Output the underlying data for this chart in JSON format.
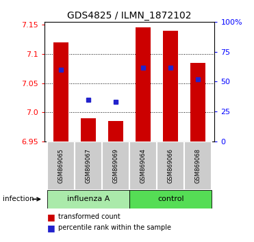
{
  "title": "GDS4825 / ILMN_1872102",
  "samples": [
    "GSM869065",
    "GSM869067",
    "GSM869069",
    "GSM869064",
    "GSM869066",
    "GSM869068"
  ],
  "bar_bottom": 6.95,
  "bar_tops": [
    7.12,
    6.99,
    6.985,
    7.145,
    7.14,
    7.085
  ],
  "percentile_values": [
    7.073,
    7.022,
    7.018,
    7.076,
    7.076,
    7.057
  ],
  "ylim": [
    6.95,
    7.155
  ],
  "yticks_left": [
    6.95,
    7.0,
    7.05,
    7.1,
    7.15
  ],
  "yticks_right_pct": [
    0,
    25,
    50,
    75,
    100
  ],
  "bar_color": "#cc0000",
  "percentile_color": "#2222cc",
  "bar_width": 0.55,
  "infection_label": "infection",
  "legend_bar_label": "transformed count",
  "legend_pct_label": "percentile rank within the sample",
  "title_fontsize": 10,
  "tick_fontsize": 8,
  "label_fontsize": 7,
  "group_fontsize": 8,
  "influenza_color": "#aaeaaa",
  "control_color": "#55dd55",
  "sample_box_color": "#cccccc"
}
